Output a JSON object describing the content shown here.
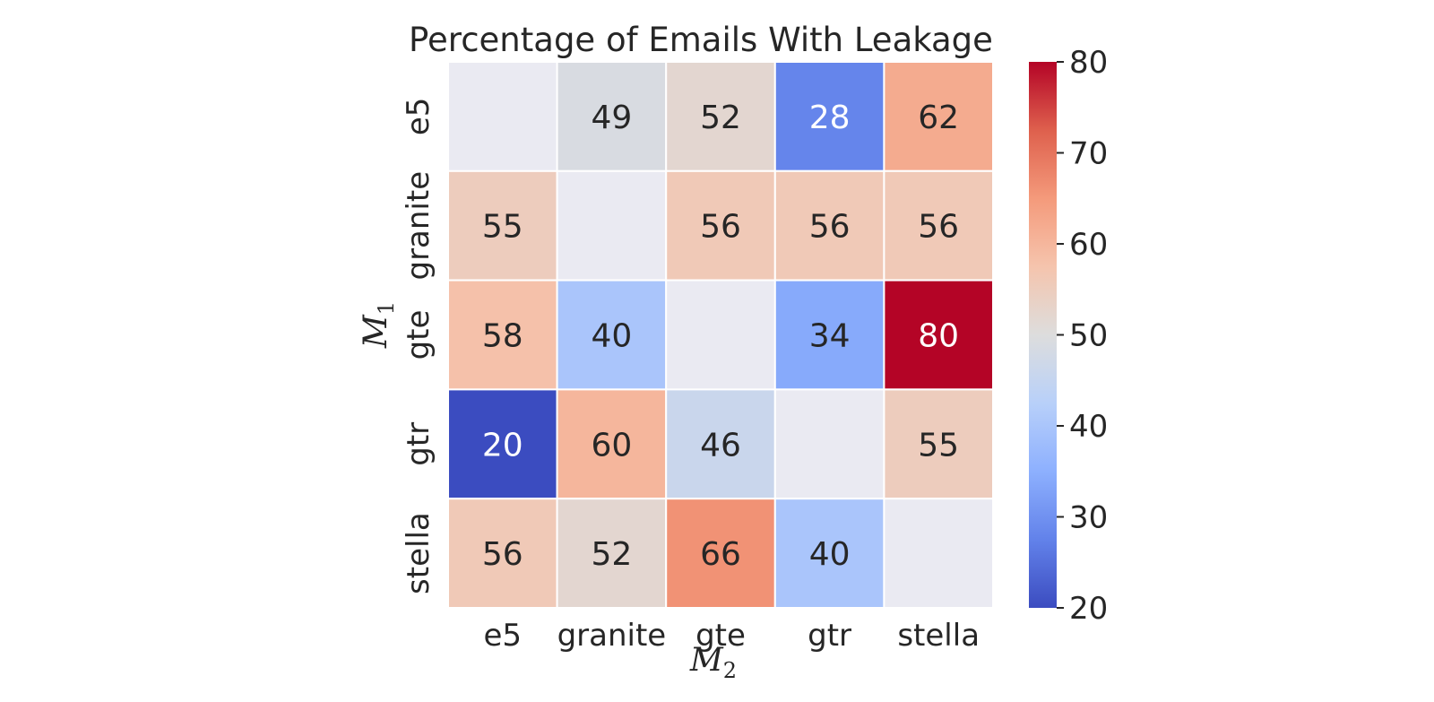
{
  "chart_data": {
    "type": "heatmap",
    "title": "Percentage of Emails With Leakage",
    "xlabel": "M",
    "xlabel_sub": "2",
    "ylabel": "M",
    "ylabel_sub": "1",
    "x_categories": [
      "e5",
      "granite",
      "gte",
      "gtr",
      "stella"
    ],
    "y_categories": [
      "e5",
      "granite",
      "gte",
      "gtr",
      "stella"
    ],
    "values": [
      [
        null,
        49,
        52,
        28,
        62
      ],
      [
        55,
        null,
        56,
        56,
        56
      ],
      [
        58,
        40,
        null,
        34,
        80
      ],
      [
        20,
        60,
        46,
        null,
        55
      ],
      [
        56,
        52,
        66,
        40,
        null
      ]
    ],
    "missing_color": "#eaeaf2",
    "colormap": "coolwarm",
    "vmin": 20,
    "vmax": 80,
    "colorbar_ticks": [
      20,
      30,
      40,
      50,
      60,
      70,
      80
    ],
    "cell_border_color": "#ffffff",
    "text_color_dark": "#262626",
    "text_color_light": "#ffffff"
  }
}
